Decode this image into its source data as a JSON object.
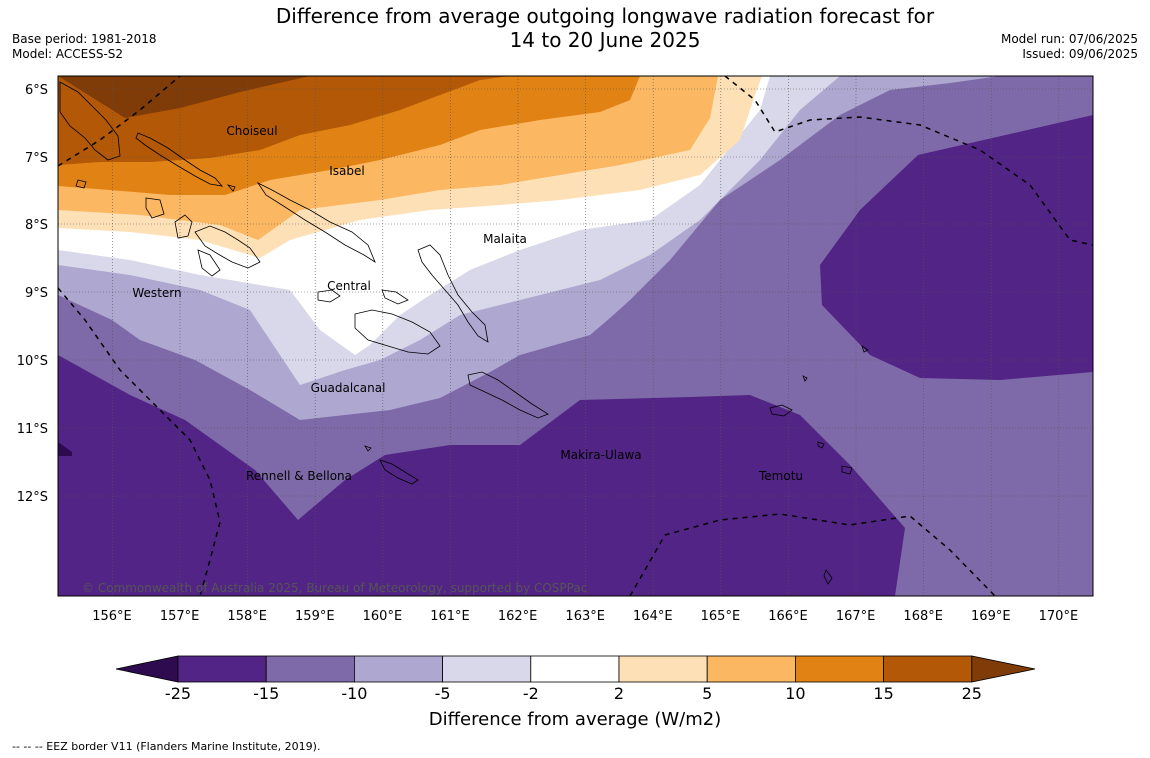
{
  "title": {
    "line1": "Difference from average outgoing longwave radiation forecast for",
    "line2": "14 to 20 June 2025"
  },
  "meta_left": {
    "base_period": "Base period: 1981-2018",
    "model": "Model: ACCESS-S2"
  },
  "meta_right": {
    "model_run": "Model run: 07/06/2025",
    "issued": "Issued: 09/06/2025"
  },
  "map": {
    "lat_labels": [
      "6°S",
      "7°S",
      "8°S",
      "9°S",
      "10°S",
      "11°S",
      "12°S"
    ],
    "lon_labels": [
      "156°E",
      "157°E",
      "158°E",
      "159°E",
      "160°E",
      "161°E",
      "162°E",
      "163°E",
      "164°E",
      "165°E",
      "166°E",
      "167°E",
      "168°E",
      "169°E",
      "170°E"
    ],
    "place_labels": [
      {
        "name": "Choiseul"
      },
      {
        "name": "Isabel"
      },
      {
        "name": "Malaita"
      },
      {
        "name": "Central"
      },
      {
        "name": "Western"
      },
      {
        "name": "Guadalcanal"
      },
      {
        "name": "Rennell & Bellona"
      },
      {
        "name": "Makira-Ulawa"
      },
      {
        "name": "Temotu"
      }
    ],
    "copyright": "© Commonwealth of Australia 2025, Bureau of Meteorology, supported by COSPPac"
  },
  "colorbar": {
    "ticks": [
      "-25",
      "-15",
      "-10",
      "-5",
      "-2",
      "2",
      "5",
      "10",
      "15",
      "25"
    ],
    "colors": [
      "#2d0b4e",
      "#522485",
      "#7e6aa8",
      "#aea7d0",
      "#d9d8ea",
      "#ffffff",
      "#fee0b6",
      "#fbb762",
      "#e08214",
      "#b35806",
      "#7f3b08"
    ],
    "title": "Difference from average (W/m2)"
  },
  "footer": "--  --  -- EEZ border V11 (Flanders Marine Institute, 2019)."
}
